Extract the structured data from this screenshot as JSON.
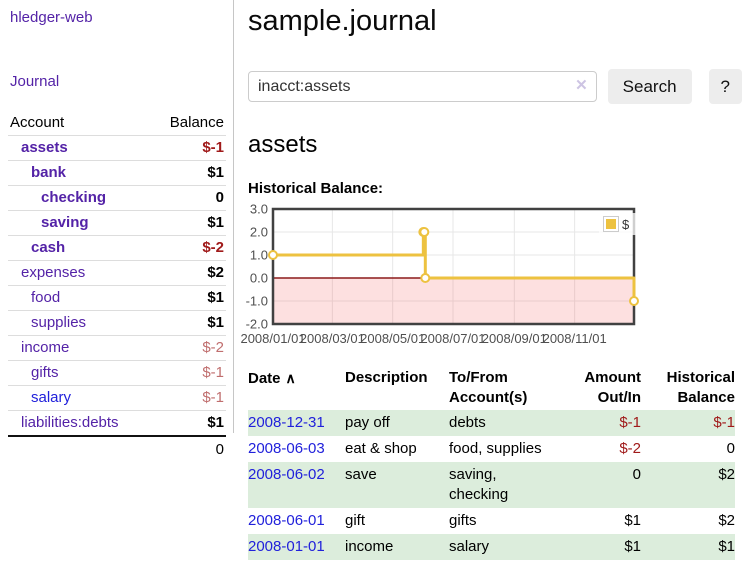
{
  "app": {
    "brand": "hledger-web"
  },
  "sidebar": {
    "journal_link": "Journal",
    "accounts": {
      "header": {
        "account": "Account",
        "balance": "Balance"
      },
      "rows": [
        {
          "name": "assets",
          "balance": "$-1",
          "indent": 1,
          "bold": true,
          "balance_style": "neg-strong",
          "link_style": "purple"
        },
        {
          "name": "bank",
          "balance": "$1",
          "indent": 2,
          "bold": true,
          "balance_style": "pos",
          "link_style": "purple"
        },
        {
          "name": "checking",
          "balance": "0",
          "indent": 3,
          "bold": true,
          "balance_style": "pos",
          "link_style": "purple"
        },
        {
          "name": "saving",
          "balance": "$1",
          "indent": 3,
          "bold": true,
          "balance_style": "pos",
          "link_style": "purple"
        },
        {
          "name": "cash",
          "balance": "$-2",
          "indent": 2,
          "bold": true,
          "balance_style": "neg-strong",
          "link_style": "purple"
        },
        {
          "name": "expenses",
          "balance": "$2",
          "indent": 1,
          "bold": false,
          "balance_style": "pos",
          "link_style": "purple"
        },
        {
          "name": "food",
          "balance": "$1",
          "indent": 2,
          "bold": false,
          "balance_style": "pos",
          "link_style": "purple"
        },
        {
          "name": "supplies",
          "balance": "$1",
          "indent": 2,
          "bold": false,
          "balance_style": "pos",
          "link_style": "purple"
        },
        {
          "name": "income",
          "balance": "$-2",
          "indent": 1,
          "bold": false,
          "balance_style": "neg-soft",
          "link_style": "purple"
        },
        {
          "name": "gifts",
          "balance": "$-1",
          "indent": 2,
          "bold": false,
          "balance_style": "neg-soft",
          "link_style": "purple"
        },
        {
          "name": "salary",
          "balance": "$-1",
          "indent": 2,
          "bold": false,
          "balance_style": "neg-soft",
          "link_style": "blue"
        },
        {
          "name": "liabilities:debts",
          "balance": "$1",
          "indent": 1,
          "bold": false,
          "balance_style": "pos",
          "link_style": "purple"
        }
      ],
      "total": "0"
    }
  },
  "main": {
    "title": "sample.journal",
    "search": {
      "value": "inacct:assets",
      "clear_icon": "✕",
      "button_label": "Search",
      "help_label": "?"
    },
    "account_heading": "assets",
    "section_label": "Historical Balance:"
  },
  "chart_data": {
    "type": "line",
    "title": "Historical Balance",
    "step": true,
    "legend": [
      {
        "label": "$",
        "color": "#EDC240"
      }
    ],
    "legend_position": "top-right",
    "points": [
      [
        "2008-01-01",
        1
      ],
      [
        "2008-06-01",
        2
      ],
      [
        "2008-06-02",
        2
      ],
      [
        "2008-06-03",
        0
      ],
      [
        "2008-12-31",
        -1
      ]
    ],
    "x_range": [
      "2008-01-01",
      "2008-12-31"
    ],
    "x_ticks": [
      "2008/01/01",
      "2008/03/01",
      "2008/05/01",
      "2008/07/01",
      "2008/09/01",
      "2008/11/01"
    ],
    "y_ticks": [
      "3.0",
      "2.0",
      "1.0",
      "0.0",
      "-1.0",
      "-2.0"
    ],
    "ylim": [
      -2,
      3
    ],
    "grid": true,
    "line_color": "#EDC240",
    "marker_fill": "#ffffff",
    "negative_region_fill": "rgba(240,60,60,0.16)",
    "zero_line_color": "#8B1A1A",
    "border_color": "#414141",
    "axis_text_color": "#4F4F4F"
  },
  "register": {
    "headers": {
      "date": "Date",
      "sort_icon": "∧",
      "description": "Description",
      "to_from": [
        "To/From",
        "Account(s)"
      ],
      "amount": [
        "Amount",
        "Out/In"
      ],
      "balance": [
        "Historical",
        "Balance"
      ]
    },
    "rows": [
      {
        "date": "2008-12-31",
        "description": "pay off",
        "to_from": [
          "debts"
        ],
        "amount": "$-1",
        "amount_neg": true,
        "balance": "$-1",
        "balance_neg": true
      },
      {
        "date": "2008-06-03",
        "description": "eat & shop",
        "to_from": [
          "food, supplies"
        ],
        "amount": "$-2",
        "amount_neg": true,
        "balance": "0",
        "balance_neg": false
      },
      {
        "date": "2008-06-02",
        "description": "save",
        "to_from": [
          "saving,",
          "checking"
        ],
        "amount": "0",
        "amount_neg": false,
        "balance": "$2",
        "balance_neg": false
      },
      {
        "date": "2008-06-01",
        "description": "gift",
        "to_from": [
          "gifts"
        ],
        "amount": "$1",
        "amount_neg": false,
        "balance": "$2",
        "balance_neg": false
      },
      {
        "date": "2008-01-01",
        "description": "income",
        "to_from": [
          "salary"
        ],
        "amount": "$1",
        "amount_neg": false,
        "balance": "$1",
        "balance_neg": false
      }
    ]
  }
}
